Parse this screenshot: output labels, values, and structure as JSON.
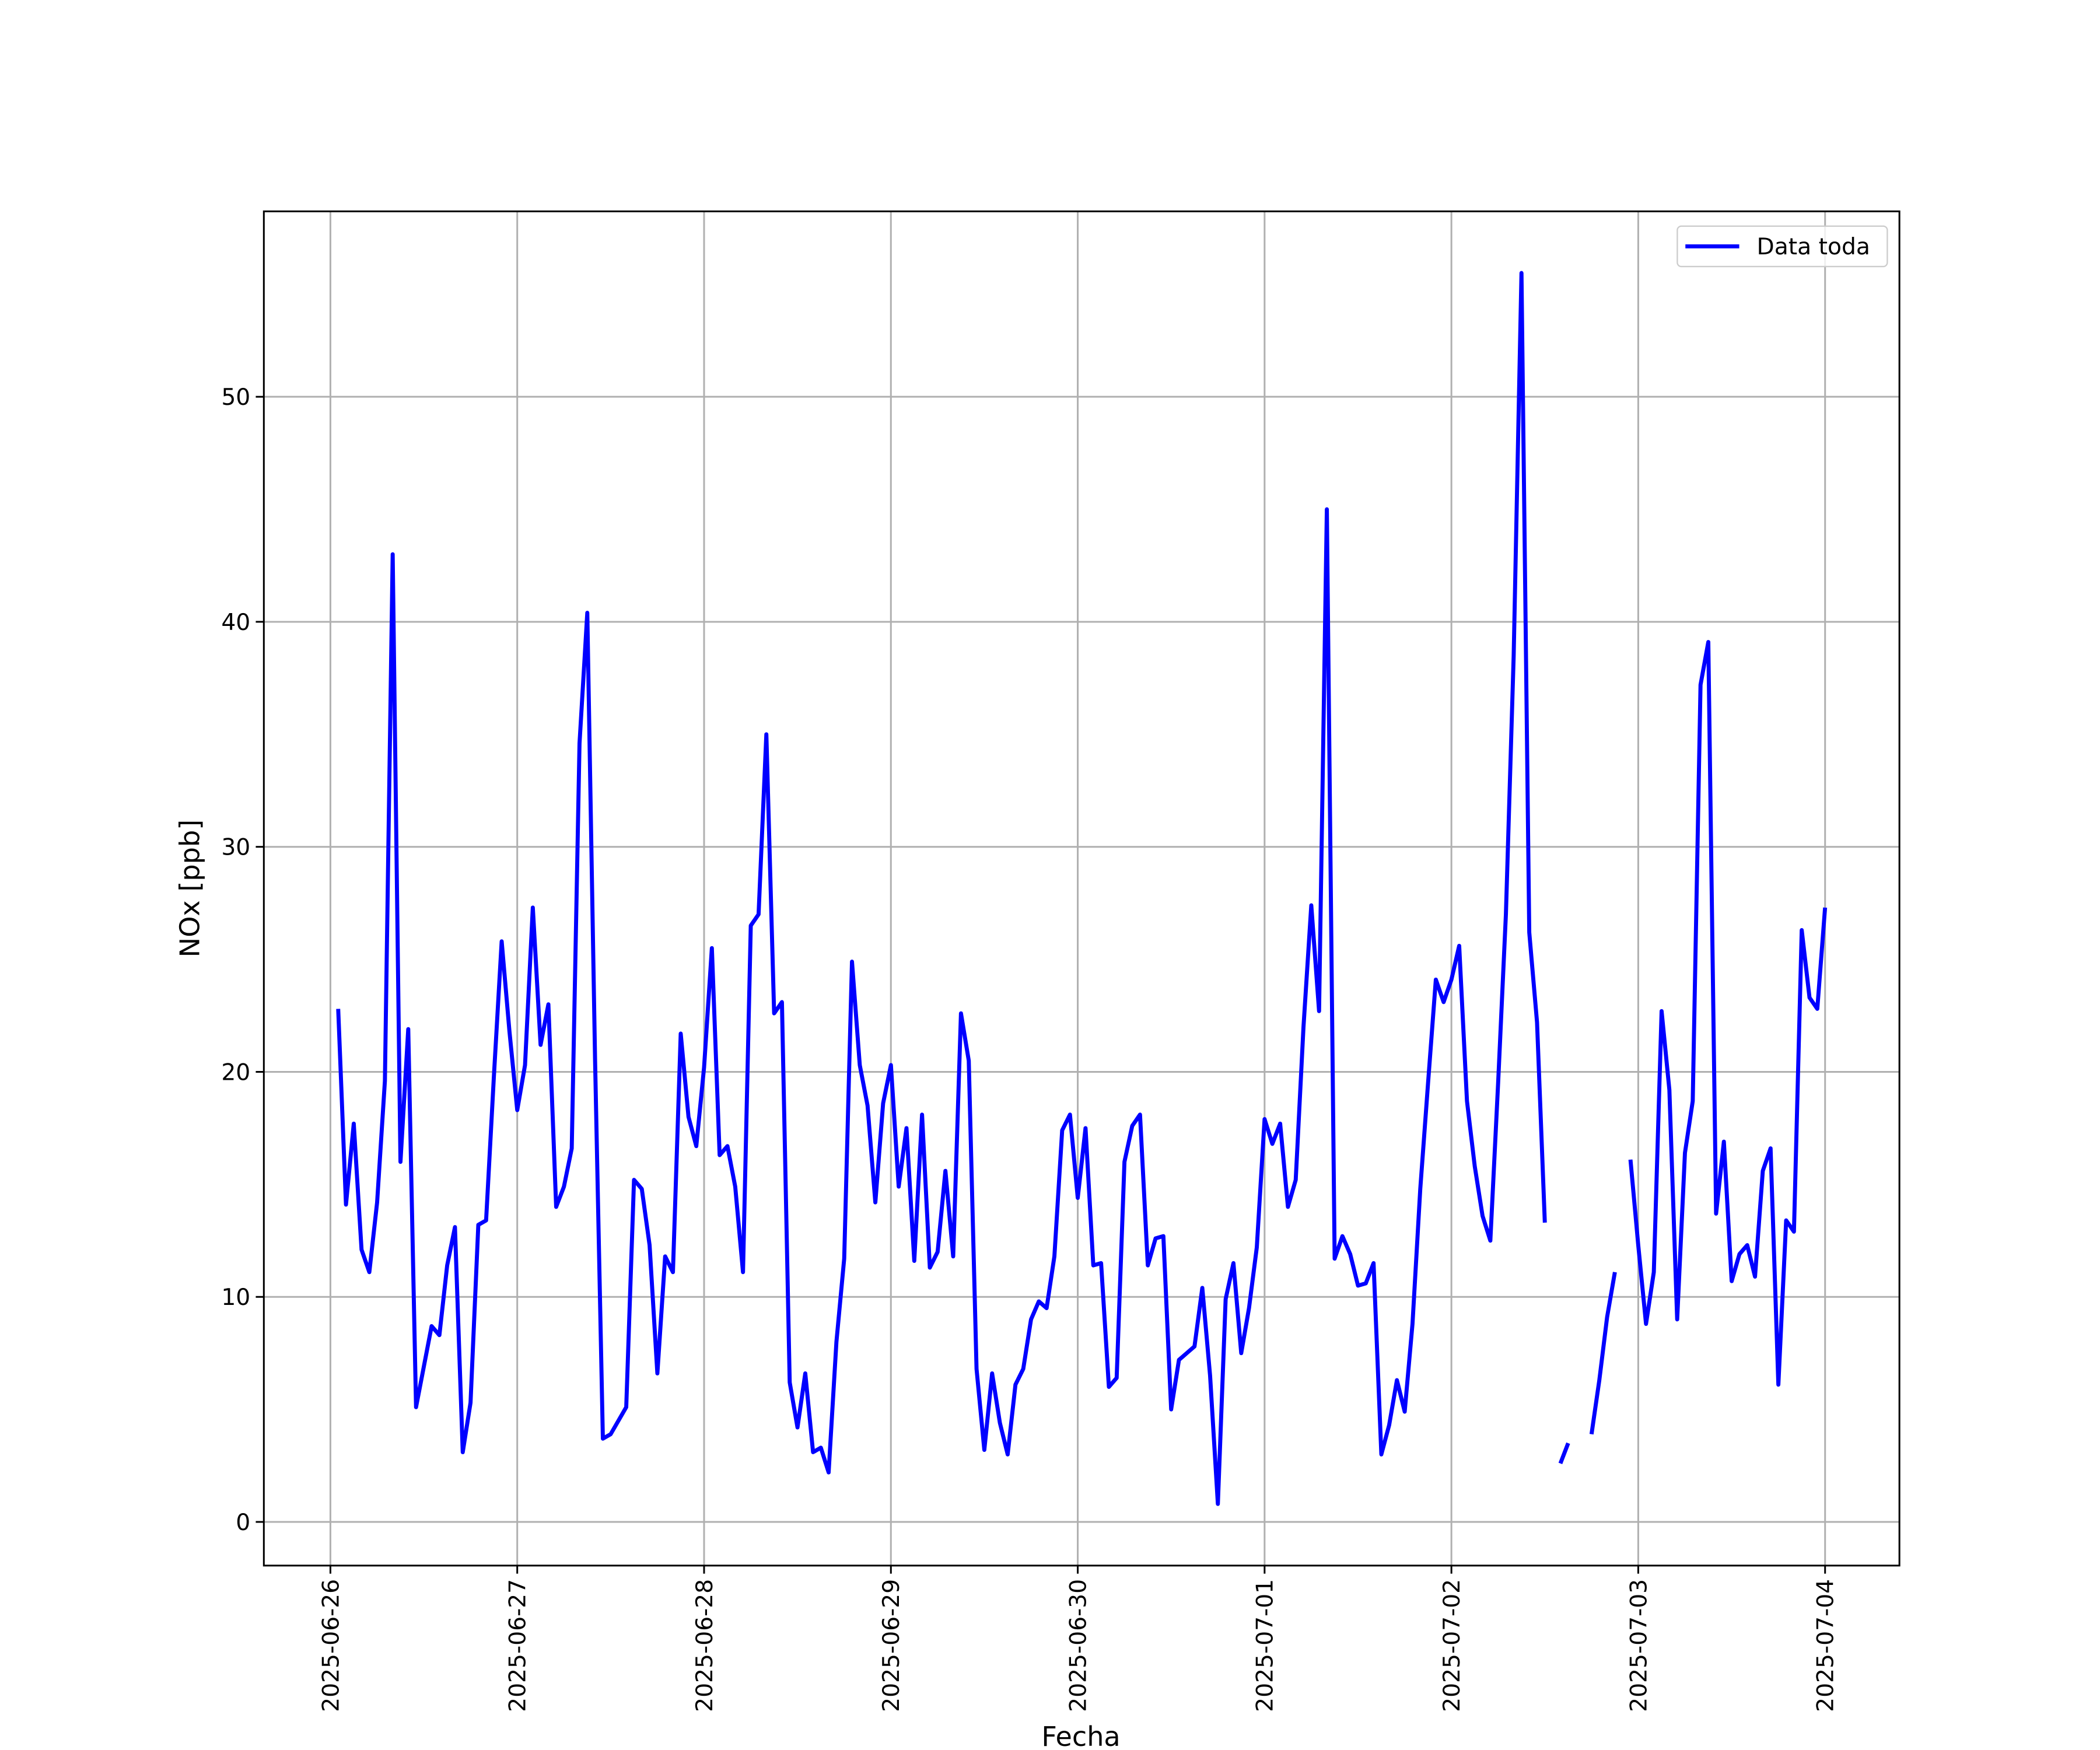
{
  "chart_data": {
    "type": "line",
    "xlabel": "Fecha",
    "ylabel": "NOx [ppb]",
    "x": [
      "2025-06-26 01:00",
      "2025-06-26 02:00",
      "2025-06-26 03:00",
      "2025-06-26 04:00",
      "2025-06-26 05:00",
      "2025-06-26 06:00",
      "2025-06-26 07:00",
      "2025-06-26 08:00",
      "2025-06-26 09:00",
      "2025-06-26 10:00",
      "2025-06-26 11:00",
      "2025-06-26 12:00",
      "2025-06-26 13:00",
      "2025-06-26 14:00",
      "2025-06-26 15:00",
      "2025-06-26 16:00",
      "2025-06-26 17:00",
      "2025-06-26 18:00",
      "2025-06-26 19:00",
      "2025-06-26 20:00",
      "2025-06-26 21:00",
      "2025-06-26 22:00",
      "2025-06-26 23:00",
      "2025-06-27 00:00",
      "2025-06-27 01:00",
      "2025-06-27 02:00",
      "2025-06-27 03:00",
      "2025-06-27 04:00",
      "2025-06-27 05:00",
      "2025-06-27 06:00",
      "2025-06-27 07:00",
      "2025-06-27 08:00",
      "2025-06-27 09:00",
      "2025-06-27 10:00",
      "2025-06-27 11:00",
      "2025-06-27 12:00",
      "2025-06-27 13:00",
      "2025-06-27 14:00",
      "2025-06-27 15:00",
      "2025-06-27 16:00",
      "2025-06-27 17:00",
      "2025-06-27 18:00",
      "2025-06-27 19:00",
      "2025-06-27 20:00",
      "2025-06-27 21:00",
      "2025-06-27 22:00",
      "2025-06-27 23:00",
      "2025-06-28 00:00",
      "2025-06-28 01:00",
      "2025-06-28 02:00",
      "2025-06-28 03:00",
      "2025-06-28 04:00",
      "2025-06-28 05:00",
      "2025-06-28 06:00",
      "2025-06-28 07:00",
      "2025-06-28 08:00",
      "2025-06-28 09:00",
      "2025-06-28 10:00",
      "2025-06-28 11:00",
      "2025-06-28 12:00",
      "2025-06-28 13:00",
      "2025-06-28 14:00",
      "2025-06-28 15:00",
      "2025-06-28 16:00",
      "2025-06-28 17:00",
      "2025-06-28 18:00",
      "2025-06-28 19:00",
      "2025-06-28 20:00",
      "2025-06-28 21:00",
      "2025-06-28 22:00",
      "2025-06-28 23:00",
      "2025-06-29 00:00",
      "2025-06-29 01:00",
      "2025-06-29 02:00",
      "2025-06-29 03:00",
      "2025-06-29 04:00",
      "2025-06-29 05:00",
      "2025-06-29 06:00",
      "2025-06-29 07:00",
      "2025-06-29 08:00",
      "2025-06-29 09:00",
      "2025-06-29 10:00",
      "2025-06-29 11:00",
      "2025-06-29 12:00",
      "2025-06-29 13:00",
      "2025-06-29 14:00",
      "2025-06-29 15:00",
      "2025-06-29 16:00",
      "2025-06-29 17:00",
      "2025-06-29 18:00",
      "2025-06-29 19:00",
      "2025-06-29 20:00",
      "2025-06-29 21:00",
      "2025-06-29 22:00",
      "2025-06-29 23:00",
      "2025-06-30 00:00",
      "2025-06-30 01:00",
      "2025-06-30 02:00",
      "2025-06-30 03:00",
      "2025-06-30 04:00",
      "2025-06-30 05:00",
      "2025-06-30 06:00",
      "2025-06-30 07:00",
      "2025-06-30 08:00",
      "2025-06-30 09:00",
      "2025-06-30 10:00",
      "2025-06-30 11:00",
      "2025-06-30 12:00",
      "2025-06-30 13:00",
      "2025-06-30 14:00",
      "2025-06-30 15:00",
      "2025-06-30 16:00",
      "2025-06-30 17:00",
      "2025-06-30 18:00",
      "2025-06-30 19:00",
      "2025-06-30 20:00",
      "2025-06-30 21:00",
      "2025-06-30 22:00",
      "2025-06-30 23:00",
      "2025-07-01 00:00",
      "2025-07-01 01:00",
      "2025-07-01 02:00",
      "2025-07-01 03:00",
      "2025-07-01 04:00",
      "2025-07-01 05:00",
      "2025-07-01 06:00",
      "2025-07-01 07:00",
      "2025-07-01 08:00",
      "2025-07-01 09:00",
      "2025-07-01 10:00",
      "2025-07-01 11:00",
      "2025-07-01 12:00",
      "2025-07-01 13:00",
      "2025-07-01 14:00",
      "2025-07-01 15:00",
      "2025-07-01 16:00",
      "2025-07-01 17:00",
      "2025-07-01 18:00",
      "2025-07-01 19:00",
      "2025-07-01 20:00",
      "2025-07-01 21:00",
      "2025-07-01 22:00",
      "2025-07-01 23:00",
      "2025-07-02 00:00",
      "2025-07-02 01:00",
      "2025-07-02 02:00",
      "2025-07-02 03:00",
      "2025-07-02 04:00",
      "2025-07-02 05:00",
      "2025-07-02 06:00",
      "2025-07-02 07:00",
      "2025-07-02 08:00",
      "2025-07-02 09:00",
      "2025-07-02 10:00",
      "2025-07-02 11:00",
      "2025-07-02 12:00",
      "2025-07-02 13:00",
      "2025-07-02 14:00",
      "2025-07-02 15:00",
      "2025-07-02 16:00",
      "2025-07-02 17:00",
      "2025-07-02 18:00",
      "2025-07-02 19:00",
      "2025-07-02 20:00",
      "2025-07-02 21:00",
      "2025-07-02 22:00",
      "2025-07-02 23:00",
      "2025-07-03 00:00",
      "2025-07-03 01:00",
      "2025-07-03 02:00",
      "2025-07-03 03:00",
      "2025-07-03 04:00",
      "2025-07-03 05:00",
      "2025-07-03 06:00",
      "2025-07-03 07:00",
      "2025-07-03 08:00",
      "2025-07-03 09:00",
      "2025-07-03 10:00",
      "2025-07-03 11:00",
      "2025-07-03 12:00",
      "2025-07-03 13:00",
      "2025-07-03 14:00",
      "2025-07-03 15:00",
      "2025-07-03 16:00",
      "2025-07-03 17:00",
      "2025-07-03 18:00",
      "2025-07-03 19:00",
      "2025-07-03 20:00",
      "2025-07-03 21:00",
      "2025-07-03 22:00",
      "2025-07-03 23:00",
      "2025-07-04 00:00"
    ],
    "series": [
      {
        "name": "Data toda",
        "color": "#0000ff",
        "values": [
          22.8,
          14.1,
          17.7,
          12.1,
          11.1,
          14.2,
          19.6,
          43.0,
          16.0,
          21.9,
          5.1,
          6.9,
          8.7,
          8.3,
          11.4,
          13.1,
          3.1,
          5.3,
          13.2,
          13.4,
          19.8,
          25.8,
          21.8,
          18.3,
          20.3,
          27.3,
          21.2,
          23.0,
          14.0,
          14.9,
          16.6,
          34.6,
          40.4,
          20.5,
          3.7,
          3.9,
          4.5,
          5.1,
          15.2,
          14.8,
          12.3,
          6.6,
          11.8,
          11.1,
          21.7,
          18.0,
          16.7,
          20.2,
          25.5,
          16.3,
          16.7,
          14.9,
          11.1,
          26.5,
          27.0,
          35.0,
          22.6,
          23.1,
          6.2,
          4.2,
          6.6,
          3.1,
          3.3,
          2.2,
          8.0,
          11.7,
          24.9,
          20.3,
          18.5,
          14.2,
          18.6,
          20.3,
          14.9,
          17.5,
          11.6,
          18.1,
          11.3,
          12.0,
          15.6,
          11.8,
          22.6,
          20.5,
          6.8,
          3.2,
          6.6,
          4.4,
          3.0,
          6.1,
          6.8,
          9.0,
          9.8,
          9.5,
          11.8,
          17.4,
          18.1,
          14.4,
          17.5,
          11.4,
          11.5,
          6.0,
          6.4,
          16.0,
          17.6,
          18.1,
          11.4,
          12.6,
          12.7,
          5.0,
          7.2,
          7.5,
          7.8,
          10.4,
          6.5,
          0.8,
          9.9,
          11.5,
          7.5,
          9.5,
          12.2,
          17.9,
          16.8,
          17.7,
          14.0,
          15.2,
          22.0,
          27.4,
          22.7,
          45.0,
          11.7,
          12.7,
          11.9,
          10.5,
          10.6,
          11.5,
          3.0,
          4.3,
          6.3,
          4.9,
          8.8,
          14.8,
          19.5,
          24.1,
          23.1,
          24.1,
          25.6,
          18.7,
          15.8,
          13.6,
          12.5,
          19.5,
          27.0,
          38.5,
          55.5,
          26.2,
          22.2,
          13.3,
          null,
          2.6,
          3.5,
          null,
          null,
          3.9,
          6.3,
          9.1,
          11.1,
          null,
          16.1,
          12.3,
          8.8,
          11.1,
          22.7,
          19.2,
          9.0,
          16.4,
          18.7,
          37.2,
          39.1,
          13.7,
          16.9,
          10.7,
          11.9,
          12.3,
          10.9,
          15.6,
          16.6,
          6.1,
          13.4,
          12.9,
          26.3,
          23.3,
          22.8,
          27.3
        ]
      }
    ],
    "xlim": [
      "2025-06-25 15:27",
      "2025-07-04 09:33"
    ],
    "xticks": [
      "2025-06-26",
      "2025-06-27",
      "2025-06-28",
      "2025-06-29",
      "2025-06-30",
      "2025-07-01",
      "2025-07-02",
      "2025-07-03",
      "2025-07-04"
    ],
    "ylim": [
      -1.94,
      58.24
    ],
    "yticks": [
      0,
      10,
      20,
      30,
      40,
      50
    ],
    "grid": true,
    "legend": "upper right"
  }
}
